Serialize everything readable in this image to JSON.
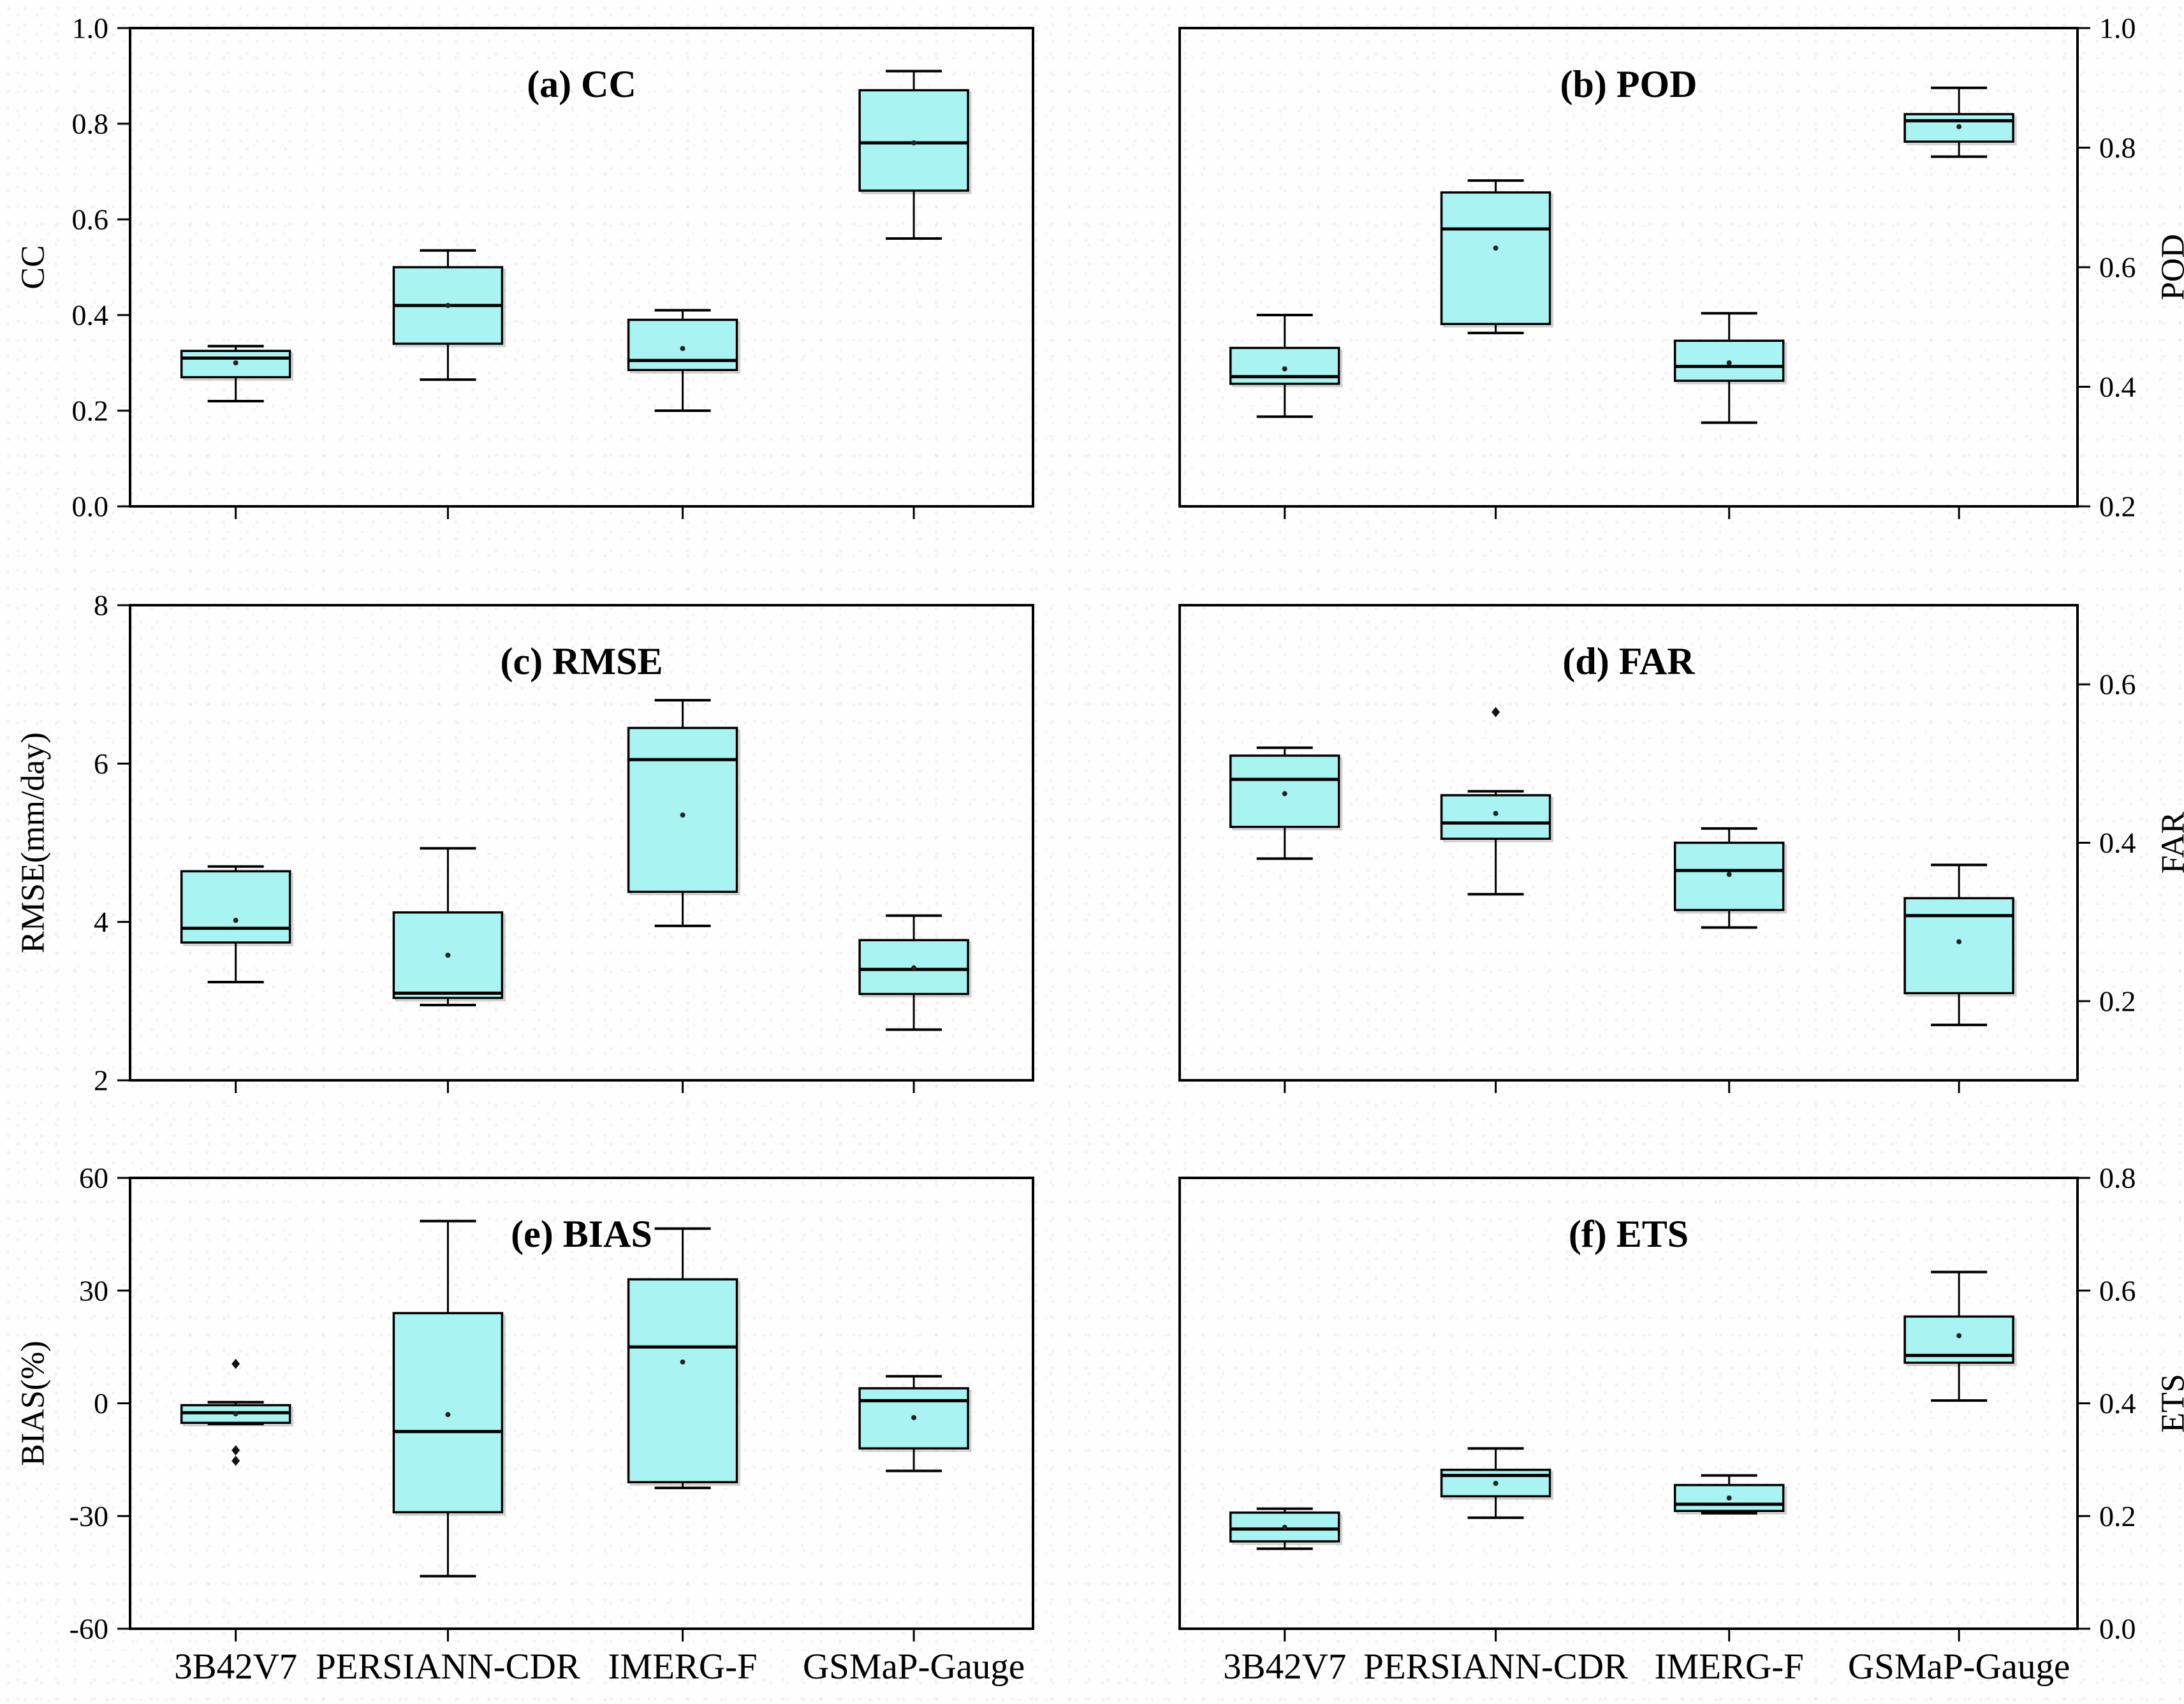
{
  "figure": {
    "background_color": "#fefefe",
    "box_fill_color": "#a9f4f2",
    "line_color": "#000000",
    "shadow_color": "#aaaaaa",
    "categories": [
      "3B42V7",
      "PERSIANN-CDR",
      "IMERG-F",
      "GSMaP-Gauge"
    ]
  },
  "chart_data": [
    {
      "id": "a",
      "type": "box",
      "title": "(a) CC",
      "ylabel": "CC",
      "axis_side": "left",
      "ylim": [
        0.0,
        1.0
      ],
      "yticks": [
        "0.0",
        "0.2",
        "0.4",
        "0.6",
        "0.8",
        "1.0"
      ],
      "show_xticklabels": false,
      "boxes": [
        {
          "category": "3B42V7",
          "whislo": 0.22,
          "q1": 0.27,
          "med": 0.31,
          "q3": 0.325,
          "whishi": 0.335,
          "mean": 0.3,
          "outliers": []
        },
        {
          "category": "PERSIANN-CDR",
          "whislo": 0.265,
          "q1": 0.34,
          "med": 0.42,
          "q3": 0.5,
          "whishi": 0.535,
          "mean": 0.42,
          "outliers": []
        },
        {
          "category": "IMERG-F",
          "whislo": 0.2,
          "q1": 0.285,
          "med": 0.305,
          "q3": 0.39,
          "whishi": 0.41,
          "mean": 0.33,
          "outliers": []
        },
        {
          "category": "GSMaP-Gauge",
          "whislo": 0.56,
          "q1": 0.66,
          "med": 0.76,
          "q3": 0.87,
          "whishi": 0.91,
          "mean": 0.76,
          "outliers": []
        }
      ]
    },
    {
      "id": "b",
      "type": "box",
      "title": "(b) POD",
      "ylabel": "POD",
      "axis_side": "right",
      "ylim": [
        0.2,
        1.0
      ],
      "yticks": [
        "0.2",
        "0.4",
        "0.6",
        "0.8",
        "1.0"
      ],
      "show_xticklabels": false,
      "boxes": [
        {
          "category": "3B42V7",
          "whislo": 0.35,
          "q1": 0.405,
          "med": 0.417,
          "q3": 0.465,
          "whishi": 0.52,
          "mean": 0.43,
          "outliers": []
        },
        {
          "category": "PERSIANN-CDR",
          "whislo": 0.49,
          "q1": 0.505,
          "med": 0.664,
          "q3": 0.725,
          "whishi": 0.745,
          "mean": 0.632,
          "outliers": []
        },
        {
          "category": "IMERG-F",
          "whislo": 0.34,
          "q1": 0.41,
          "med": 0.434,
          "q3": 0.477,
          "whishi": 0.523,
          "mean": 0.44,
          "outliers": []
        },
        {
          "category": "GSMaP-Gauge",
          "whislo": 0.785,
          "q1": 0.81,
          "med": 0.845,
          "q3": 0.856,
          "whishi": 0.9,
          "mean": 0.835,
          "outliers": []
        }
      ]
    },
    {
      "id": "c",
      "type": "box",
      "title": "(c) RMSE",
      "ylabel": "RMSE(mm/day)",
      "axis_side": "left",
      "ylim": [
        2,
        8
      ],
      "yticks": [
        "2",
        "4",
        "6",
        "8"
      ],
      "show_xticklabels": false,
      "boxes": [
        {
          "category": "3B42V7",
          "whislo": 3.24,
          "q1": 3.74,
          "med": 3.92,
          "q3": 4.64,
          "whishi": 4.7,
          "mean": 4.02,
          "outliers": []
        },
        {
          "category": "PERSIANN-CDR",
          "whislo": 2.95,
          "q1": 3.04,
          "med": 3.1,
          "q3": 4.12,
          "whishi": 4.93,
          "mean": 3.58,
          "outliers": []
        },
        {
          "category": "IMERG-F",
          "whislo": 3.95,
          "q1": 4.38,
          "med": 6.05,
          "q3": 6.45,
          "whishi": 6.8,
          "mean": 5.35,
          "outliers": []
        },
        {
          "category": "GSMaP-Gauge",
          "whislo": 2.64,
          "q1": 3.09,
          "med": 3.4,
          "q3": 3.77,
          "whishi": 4.08,
          "mean": 3.42,
          "outliers": []
        }
      ]
    },
    {
      "id": "d",
      "type": "box",
      "title": "(d) FAR",
      "ylabel": "FAR",
      "axis_side": "right",
      "ylim": [
        0.1,
        0.7
      ],
      "yticks": [
        "0.2",
        "0.4",
        "0.6"
      ],
      "show_xticklabels": false,
      "boxes": [
        {
          "category": "3B42V7",
          "whislo": 0.38,
          "q1": 0.42,
          "med": 0.48,
          "q3": 0.51,
          "whishi": 0.52,
          "mean": 0.462,
          "outliers": []
        },
        {
          "category": "PERSIANN-CDR",
          "whislo": 0.335,
          "q1": 0.405,
          "med": 0.425,
          "q3": 0.46,
          "whishi": 0.465,
          "mean": 0.437,
          "outliers": [
            0.565
          ]
        },
        {
          "category": "IMERG-F",
          "whislo": 0.293,
          "q1": 0.315,
          "med": 0.365,
          "q3": 0.4,
          "whishi": 0.418,
          "mean": 0.36,
          "outliers": []
        },
        {
          "category": "GSMaP-Gauge",
          "whislo": 0.17,
          "q1": 0.21,
          "med": 0.308,
          "q3": 0.33,
          "whishi": 0.372,
          "mean": 0.275,
          "outliers": []
        }
      ]
    },
    {
      "id": "e",
      "type": "box",
      "title": "(e) BIAS",
      "ylabel": "BIAS(%)",
      "axis_side": "left",
      "ylim": [
        -60,
        60
      ],
      "yticks": [
        "-60",
        "-30",
        "0",
        "30",
        "60"
      ],
      "show_xticklabels": true,
      "boxes": [
        {
          "category": "3B42V7",
          "whislo": -5.5,
          "q1": -5.2,
          "med": -2.5,
          "q3": -0.5,
          "whishi": 0.3,
          "mean": -2.8,
          "outliers": [
            10.5,
            -12.5,
            -15.3
          ]
        },
        {
          "category": "PERSIANN-CDR",
          "whislo": -46.0,
          "q1": -29.0,
          "med": -7.5,
          "q3": 24.0,
          "whishi": 48.5,
          "mean": -3.0,
          "outliers": []
        },
        {
          "category": "IMERG-F",
          "whislo": -22.5,
          "q1": -21.0,
          "med": 15.0,
          "q3": 33.0,
          "whishi": 46.5,
          "mean": 11.0,
          "outliers": []
        },
        {
          "category": "GSMaP-Gauge",
          "whislo": -18.0,
          "q1": -12.0,
          "med": 0.7,
          "q3": 4.0,
          "whishi": 7.2,
          "mean": -3.8,
          "outliers": []
        }
      ]
    },
    {
      "id": "f",
      "type": "box",
      "title": "(f) ETS",
      "ylabel": "ETS",
      "axis_side": "right",
      "ylim": [
        0.0,
        0.8
      ],
      "yticks": [
        "0.0",
        "0.2",
        "0.4",
        "0.6",
        "0.8"
      ],
      "show_xticklabels": true,
      "boxes": [
        {
          "category": "3B42V7",
          "whislo": 0.142,
          "q1": 0.155,
          "med": 0.177,
          "q3": 0.206,
          "whishi": 0.213,
          "mean": 0.18,
          "outliers": []
        },
        {
          "category": "PERSIANN-CDR",
          "whislo": 0.197,
          "q1": 0.235,
          "med": 0.272,
          "q3": 0.282,
          "whishi": 0.32,
          "mean": 0.258,
          "outliers": []
        },
        {
          "category": "IMERG-F",
          "whislo": 0.205,
          "q1": 0.209,
          "med": 0.221,
          "q3": 0.255,
          "whishi": 0.272,
          "mean": 0.232,
          "outliers": []
        },
        {
          "category": "GSMaP-Gauge",
          "whislo": 0.405,
          "q1": 0.472,
          "med": 0.485,
          "q3": 0.554,
          "whishi": 0.633,
          "mean": 0.52,
          "outliers": []
        }
      ]
    }
  ]
}
